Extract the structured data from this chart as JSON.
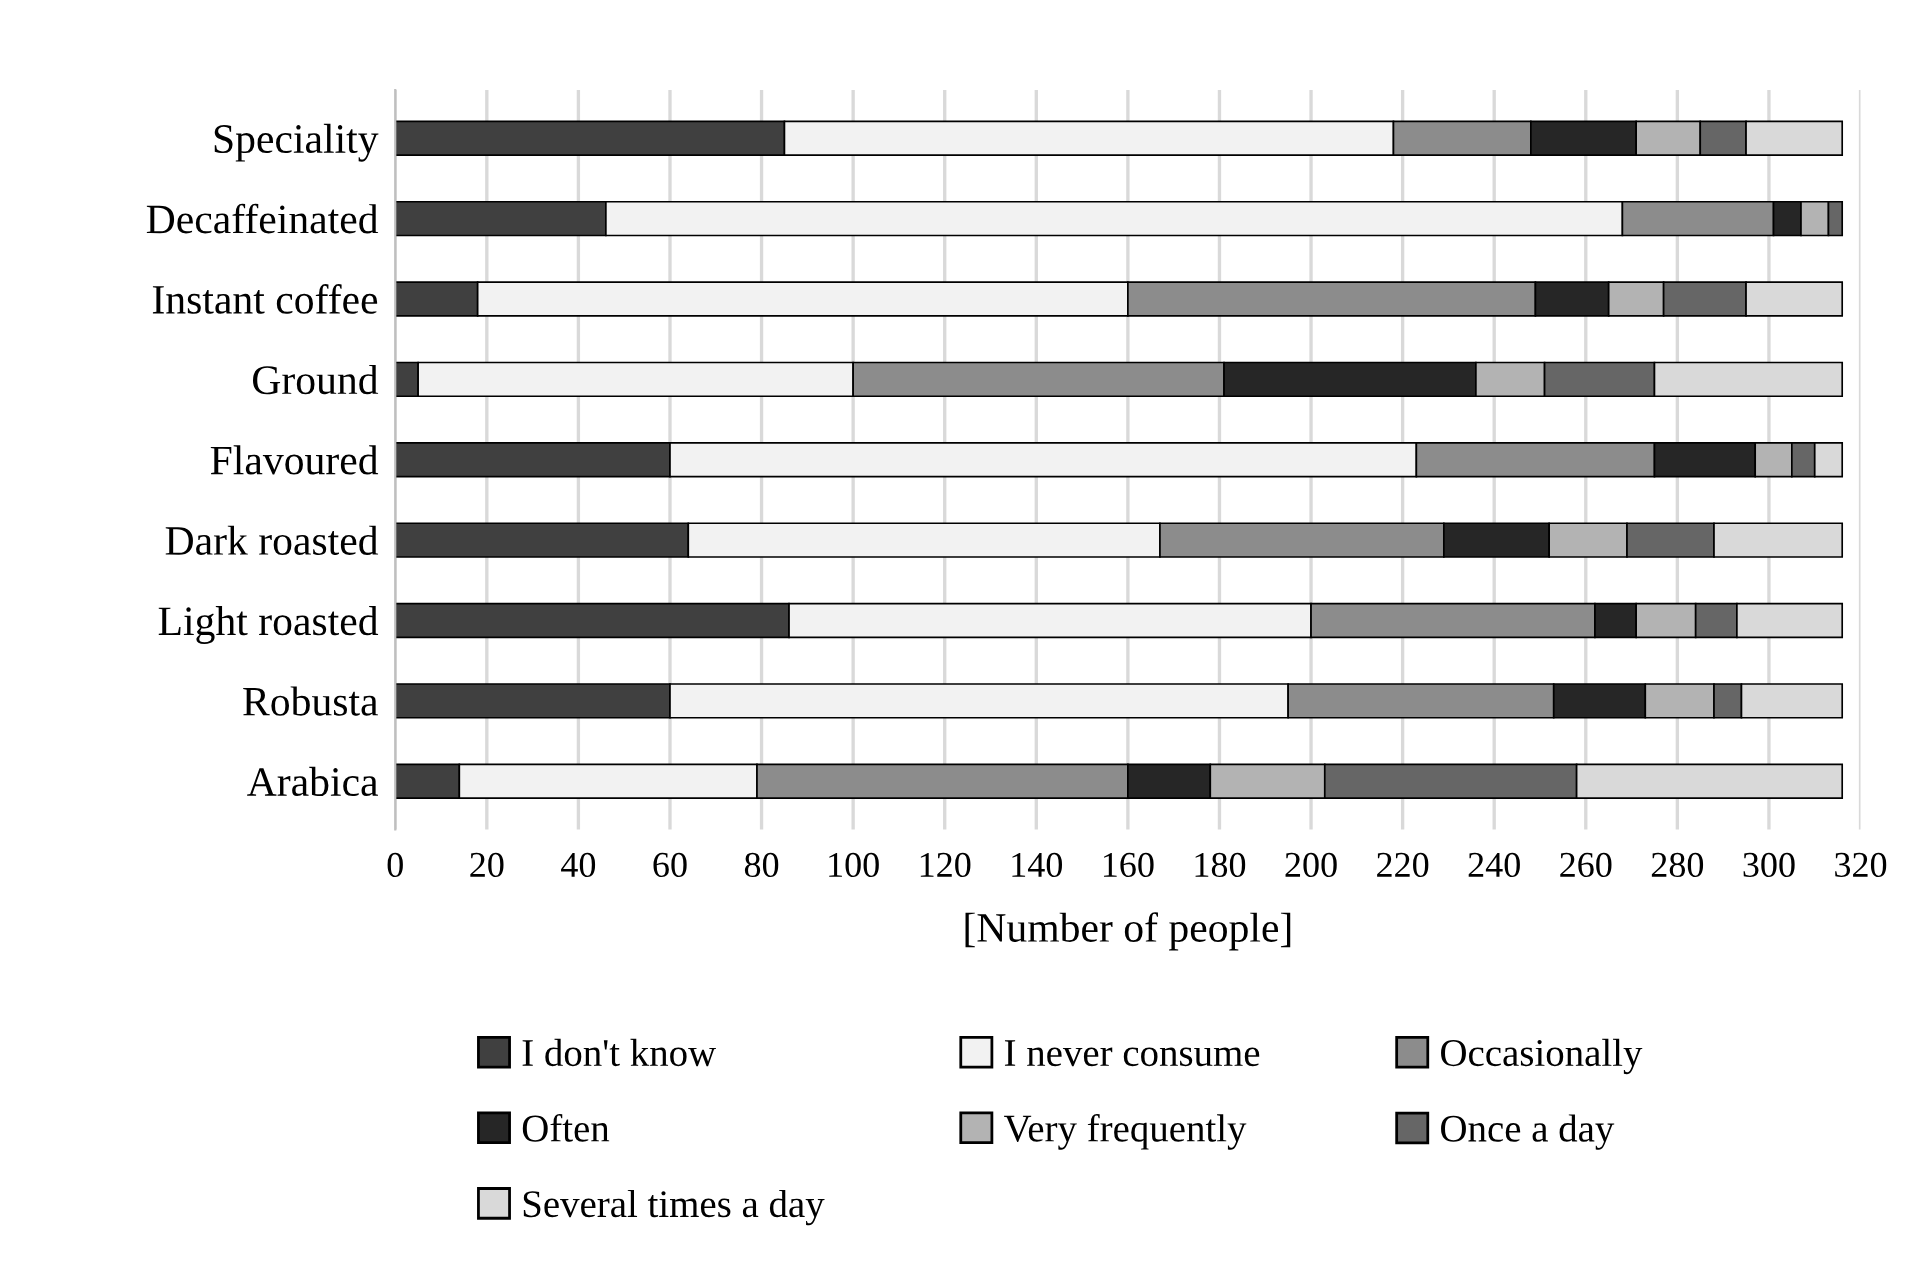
{
  "chart_data": {
    "type": "bar",
    "orientation": "horizontal",
    "stacked": true,
    "categories": [
      "Speciality",
      "Decaffeinated",
      "Instant coffee",
      "Ground",
      "Flavoured",
      "Dark roasted",
      "Light roasted",
      "Robusta",
      "Arabica"
    ],
    "series": [
      {
        "name": "I don't know",
        "color": "#404040",
        "values": [
          85,
          46,
          18,
          5,
          60,
          64,
          86,
          60,
          14
        ]
      },
      {
        "name": "I never consume",
        "color": "#f2f2f2",
        "values": [
          133,
          222,
          142,
          95,
          163,
          103,
          114,
          135,
          65
        ]
      },
      {
        "name": "Occasionally",
        "color": "#8c8c8c",
        "values": [
          30,
          33,
          89,
          81,
          52,
          62,
          62,
          58,
          81
        ]
      },
      {
        "name": "Often",
        "color": "#262626",
        "values": [
          23,
          6,
          16,
          55,
          22,
          23,
          9,
          20,
          18
        ]
      },
      {
        "name": "Very frequently",
        "color": "#b3b3b3",
        "values": [
          14,
          6,
          12,
          15,
          8,
          17,
          13,
          15,
          25
        ]
      },
      {
        "name": "Once a day",
        "color": "#666666",
        "values": [
          10,
          3,
          18,
          24,
          5,
          19,
          9,
          6,
          55
        ]
      },
      {
        "name": "Several times a day",
        "color": "#d9d9d9",
        "values": [
          21,
          0,
          21,
          41,
          6,
          28,
          23,
          22,
          58
        ]
      }
    ],
    "xlabel": "[Number of people]",
    "xlim": [
      0,
      320
    ],
    "xticks": [
      0,
      20,
      40,
      60,
      80,
      100,
      120,
      140,
      160,
      180,
      200,
      220,
      240,
      260,
      280,
      300,
      320
    ],
    "grid": "x",
    "legend": "bottom"
  }
}
